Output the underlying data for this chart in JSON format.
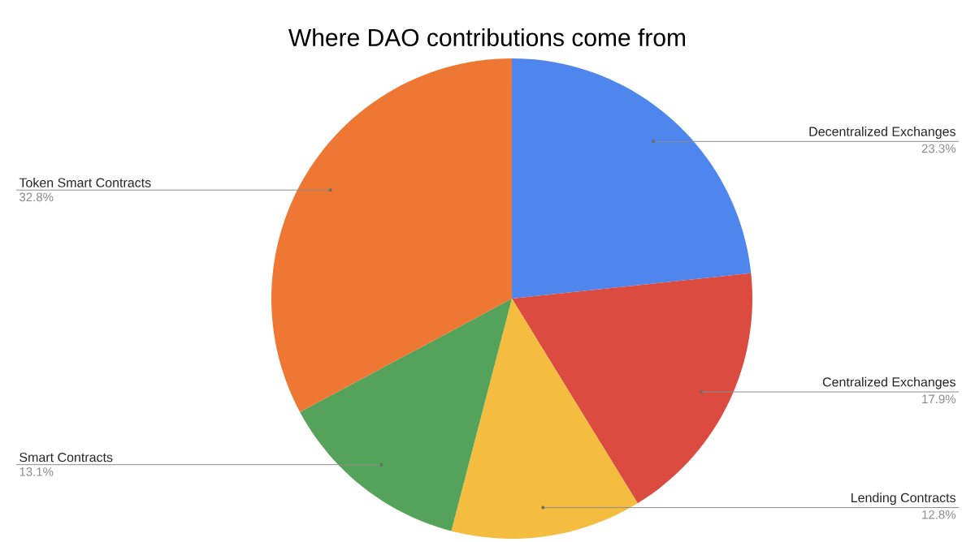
{
  "chart_data": {
    "type": "pie",
    "title": "Where DAO contributions come from",
    "categories": [
      "Decentralized Exchanges",
      "Centralized Exchanges",
      "Lending Contracts",
      "Smart Contracts",
      "Token Smart Contracts"
    ],
    "values": [
      23.3,
      17.9,
      12.8,
      13.1,
      32.8
    ],
    "value_labels": [
      "23.3%",
      "17.9%",
      "12.8%",
      "13.1%",
      "32.8%"
    ],
    "colors": [
      "#4e86ee",
      "#db4b3f",
      "#f4bd3f",
      "#55a25a",
      "#ee7733"
    ]
  }
}
